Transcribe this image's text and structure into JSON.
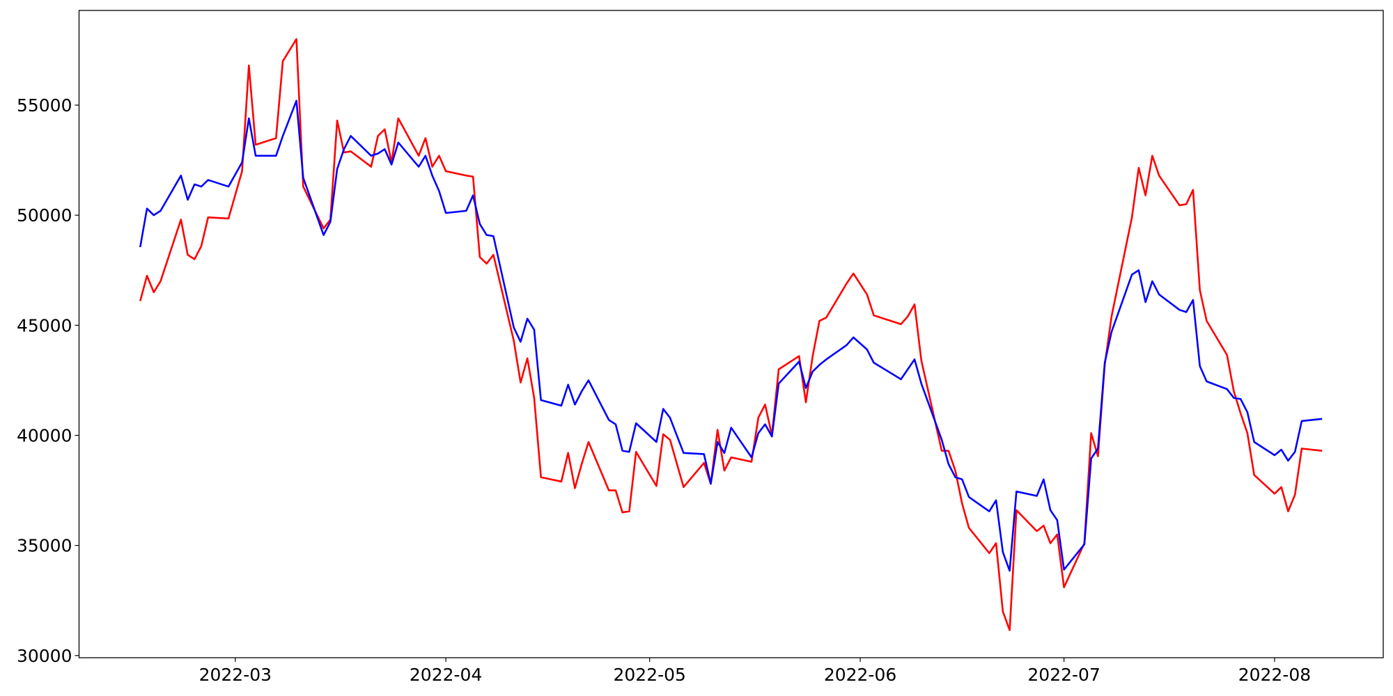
{
  "chart_data": {
    "type": "line",
    "x": [
      "2022-02-15",
      "2022-02-16",
      "2022-02-17",
      "2022-02-18",
      "2022-02-21",
      "2022-02-22",
      "2022-02-23",
      "2022-02-24",
      "2022-02-25",
      "2022-02-28",
      "2022-03-02",
      "2022-03-03",
      "2022-03-04",
      "2022-03-07",
      "2022-03-08",
      "2022-03-10",
      "2022-03-11",
      "2022-03-14",
      "2022-03-15",
      "2022-03-16",
      "2022-03-17",
      "2022-03-18",
      "2022-03-21",
      "2022-03-22",
      "2022-03-23",
      "2022-03-24",
      "2022-03-25",
      "2022-03-28",
      "2022-03-29",
      "2022-03-30",
      "2022-03-31",
      "2022-04-01",
      "2022-04-04",
      "2022-04-05",
      "2022-04-06",
      "2022-04-07",
      "2022-04-08",
      "2022-04-11",
      "2022-04-12",
      "2022-04-13",
      "2022-04-14",
      "2022-04-15",
      "2022-04-18",
      "2022-04-19",
      "2022-04-20",
      "2022-04-21",
      "2022-04-22",
      "2022-04-25",
      "2022-04-26",
      "2022-04-27",
      "2022-04-28",
      "2022-04-29",
      "2022-05-02",
      "2022-05-03",
      "2022-05-04",
      "2022-05-06",
      "2022-05-09",
      "2022-05-10",
      "2022-05-11",
      "2022-05-12",
      "2022-05-13",
      "2022-05-16",
      "2022-05-17",
      "2022-05-18",
      "2022-05-19",
      "2022-05-20",
      "2022-05-23",
      "2022-05-24",
      "2022-05-25",
      "2022-05-26",
      "2022-05-27",
      "2022-05-30",
      "2022-05-31",
      "2022-06-02",
      "2022-06-03",
      "2022-06-07",
      "2022-06-08",
      "2022-06-09",
      "2022-06-10",
      "2022-06-13",
      "2022-06-14",
      "2022-06-15",
      "2022-06-16",
      "2022-06-17",
      "2022-06-20",
      "2022-06-21",
      "2022-06-22",
      "2022-06-23",
      "2022-06-24",
      "2022-06-27",
      "2022-06-28",
      "2022-06-29",
      "2022-06-30",
      "2022-07-01",
      "2022-07-04",
      "2022-07-05",
      "2022-07-06",
      "2022-07-07",
      "2022-07-08",
      "2022-07-11",
      "2022-07-12",
      "2022-07-13",
      "2022-07-14",
      "2022-07-15",
      "2022-07-18",
      "2022-07-19",
      "2022-07-20",
      "2022-07-21",
      "2022-07-22",
      "2022-07-25",
      "2022-07-26",
      "2022-07-27",
      "2022-07-28",
      "2022-07-29",
      "2022-08-01",
      "2022-08-02",
      "2022-08-03",
      "2022-08-04",
      "2022-08-05",
      "2022-08-08"
    ],
    "series": [
      {
        "color": "#ff0000",
        "values": [
          46100,
          47250,
          46500,
          47000,
          49800,
          48200,
          48000,
          48600,
          49900,
          49850,
          52000,
          56800,
          53200,
          53500,
          57000,
          58000,
          51300,
          49400,
          49800,
          54300,
          52850,
          52900,
          52200,
          53600,
          53900,
          52400,
          54400,
          52700,
          53500,
          52200,
          52700,
          52000,
          51800,
          51750,
          48100,
          47800,
          48200,
          44300,
          42400,
          43500,
          41700,
          38100,
          37900,
          39200,
          37600,
          38700,
          39700,
          37500,
          37500,
          36500,
          36550,
          39250,
          37700,
          40050,
          39800,
          37650,
          38750,
          37800,
          40250,
          38400,
          39000,
          38800,
          40800,
          41400,
          40000,
          43000,
          43600,
          41500,
          43600,
          45200,
          45350,
          46900,
          47350,
          46400,
          45450,
          45050,
          45400,
          45950,
          43400,
          39300,
          39300,
          38400,
          36900,
          35800,
          34650,
          35100,
          32000,
          31150,
          36600,
          35650,
          35900,
          35100,
          35500,
          33100,
          35100,
          40100,
          39050,
          43200,
          45400,
          49900,
          52150,
          50900,
          52700,
          51800,
          50450,
          50500,
          51150,
          46600,
          45200,
          43650,
          42000,
          41000,
          40100,
          38200,
          37350,
          37650,
          36550,
          37300,
          39400,
          39300
        ]
      },
      {
        "color": "#0000ff",
        "values": [
          48550,
          50300,
          50000,
          50200,
          51800,
          50700,
          51400,
          51300,
          51600,
          51300,
          52400,
          54400,
          52700,
          52700,
          53600,
          55200,
          51700,
          49100,
          49700,
          52100,
          53000,
          53600,
          52700,
          52800,
          53000,
          52300,
          53300,
          52200,
          52700,
          51800,
          51100,
          50100,
          50200,
          50900,
          49600,
          49100,
          49050,
          44900,
          44250,
          45300,
          44800,
          41600,
          41350,
          42300,
          41400,
          42000,
          42500,
          40700,
          40500,
          39300,
          39250,
          40550,
          39700,
          41200,
          40800,
          39200,
          39150,
          37800,
          39700,
          39200,
          40350,
          39000,
          40100,
          40500,
          39950,
          42350,
          43350,
          42150,
          42900,
          43200,
          43450,
          44100,
          44450,
          43900,
          43300,
          42550,
          43000,
          43450,
          42350,
          39800,
          38700,
          38100,
          38000,
          37200,
          36550,
          37050,
          34700,
          33850,
          37450,
          37250,
          38000,
          36600,
          36150,
          33900,
          35050,
          38950,
          39400,
          43300,
          44700,
          47300,
          47500,
          46050,
          47000,
          46400,
          45700,
          45600,
          46150,
          43150,
          42450,
          42100,
          41700,
          41650,
          41050,
          39700,
          39100,
          39350,
          38850,
          39250,
          40650,
          40750
        ]
      }
    ],
    "xlim": [
      "2022-02-06",
      "2022-08-17"
    ],
    "xticks": [
      {
        "value": "2022-03-01",
        "label": "2022-03"
      },
      {
        "value": "2022-04-01",
        "label": "2022-04"
      },
      {
        "value": "2022-05-01",
        "label": "2022-05"
      },
      {
        "value": "2022-06-01",
        "label": "2022-06"
      },
      {
        "value": "2022-07-01",
        "label": "2022-07"
      },
      {
        "value": "2022-08-01",
        "label": "2022-08"
      }
    ],
    "ylim": [
      29900,
      59300
    ],
    "yticks": [
      30000,
      35000,
      40000,
      45000,
      50000,
      55000
    ],
    "grid": false
  }
}
